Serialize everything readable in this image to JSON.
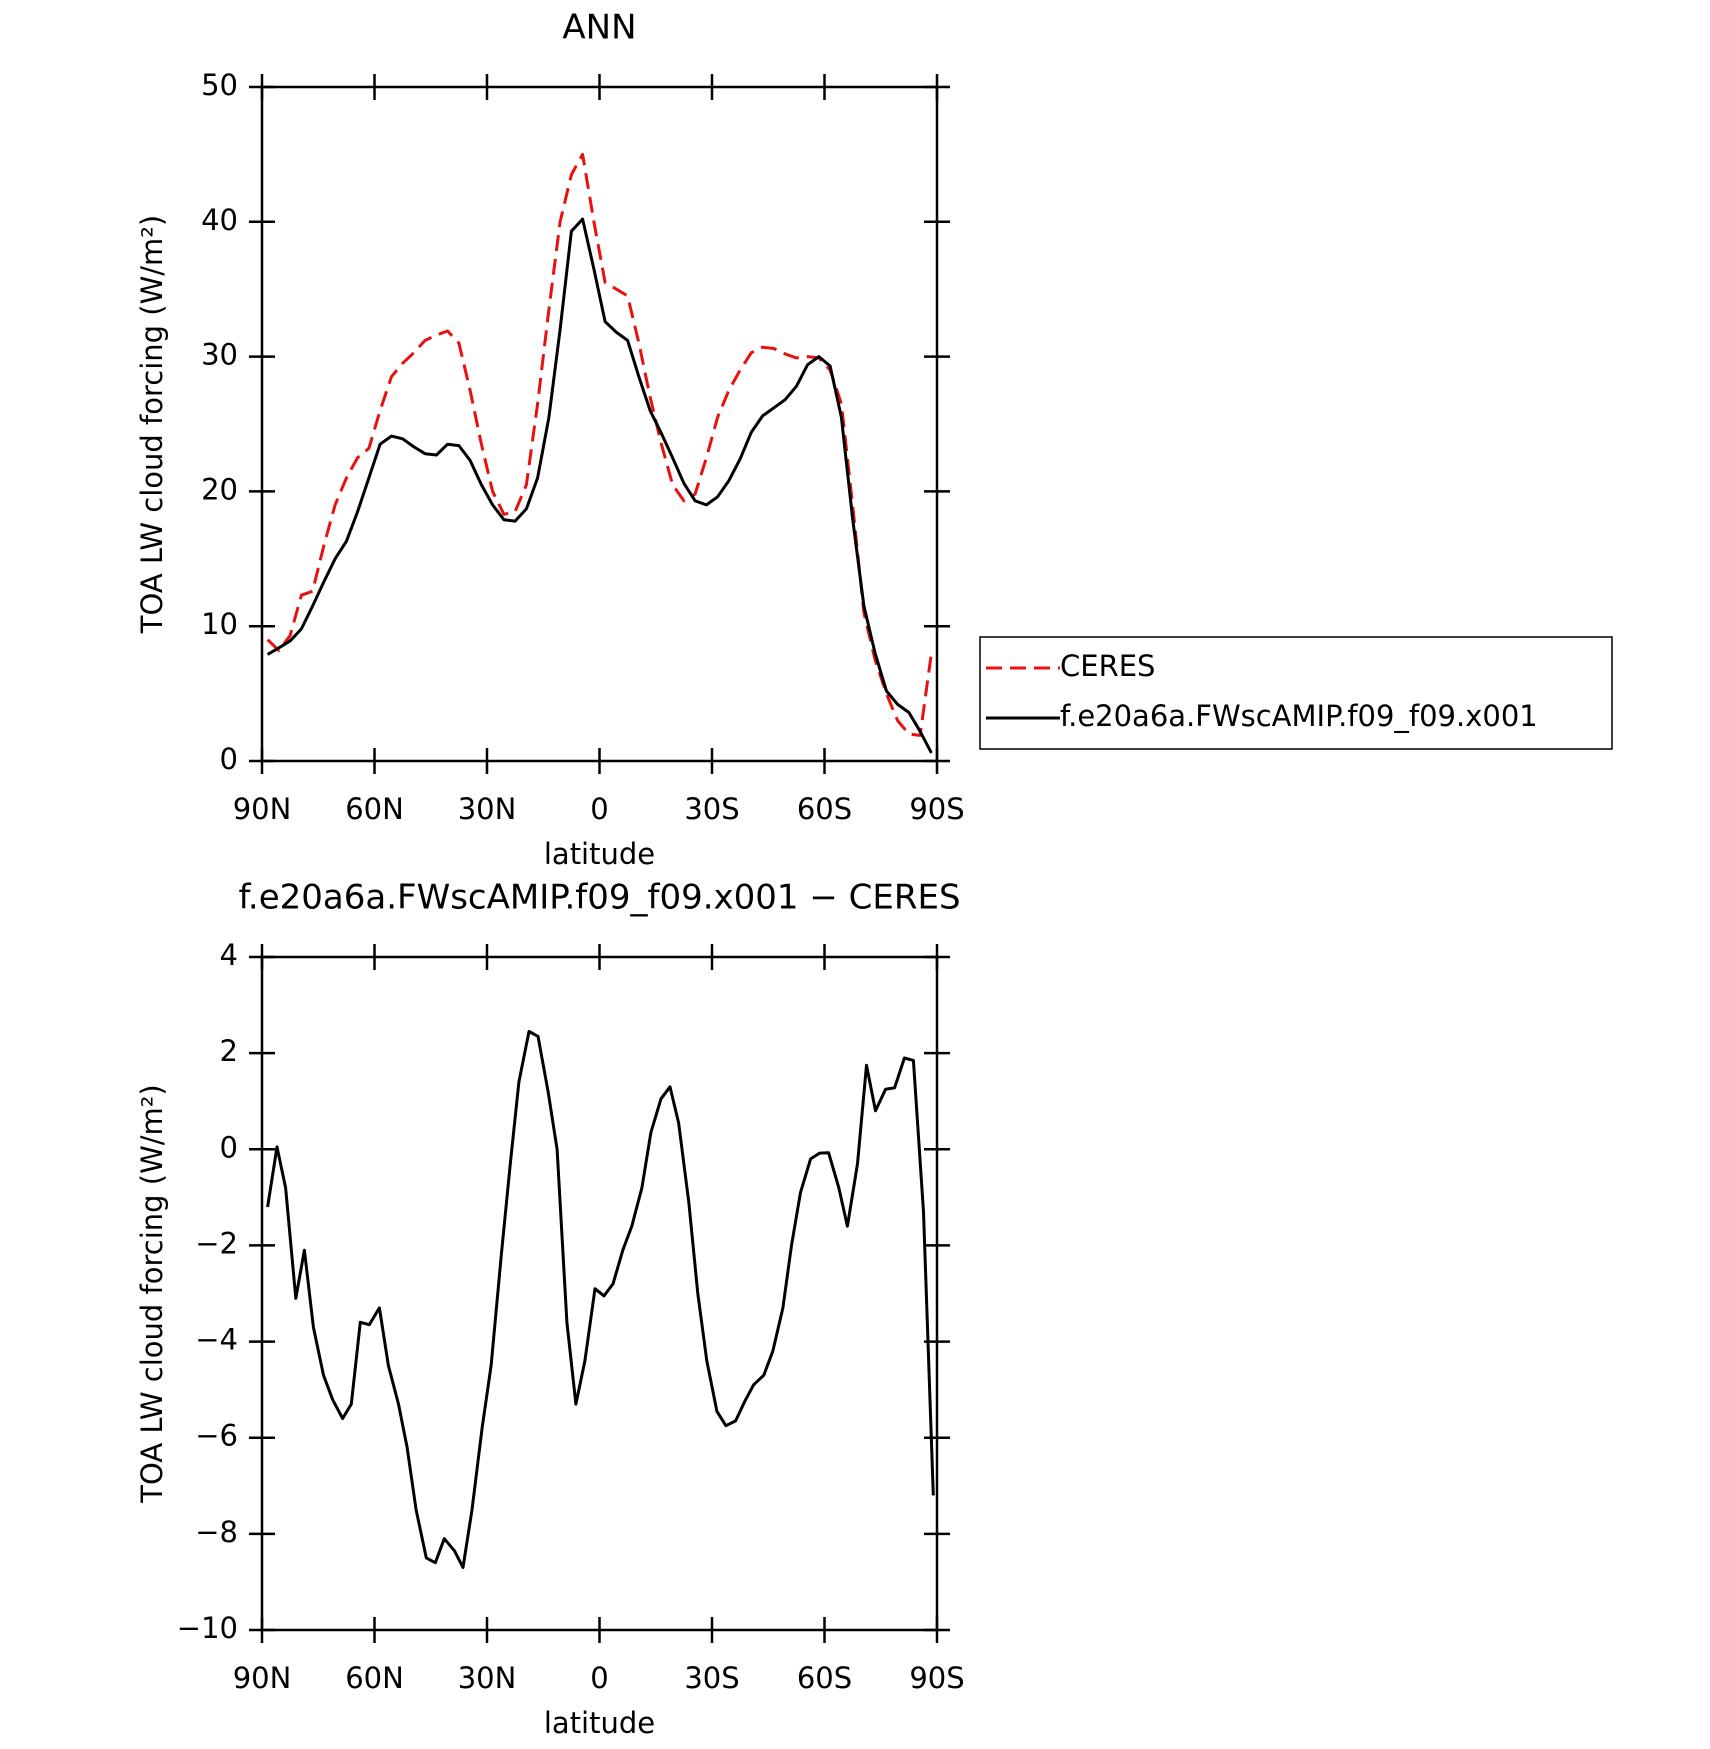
{
  "chart_data": [
    {
      "type": "line",
      "title": "ANN",
      "x_label": "latitude",
      "y_label": "TOA LW cloud forcing (W/m²)",
      "xlim": [
        90,
        -90
      ],
      "xticks": [
        {
          "value": 90,
          "label": "90N"
        },
        {
          "value": 60,
          "label": "60N"
        },
        {
          "value": 30,
          "label": "30N"
        },
        0,
        {
          "value": -30,
          "label": "30S"
        },
        {
          "value": -60,
          "label": "60S"
        },
        {
          "value": -90,
          "label": "90S"
        }
      ],
      "ylim": [
        0,
        50
      ],
      "yticks": [
        0,
        10,
        20,
        30,
        40,
        50
      ],
      "legend": "outside right",
      "x": [
        88.5,
        85.5,
        82.5,
        79.5,
        76.5,
        73.5,
        70.5,
        67.5,
        64.5,
        61.5,
        58.5,
        55.5,
        52.5,
        49.5,
        46.5,
        43.5,
        40.5,
        37.5,
        34.5,
        31.5,
        28.5,
        25.5,
        22.5,
        19.5,
        16.5,
        13.5,
        10.5,
        7.5,
        4.5,
        1.5,
        -1.5,
        -4.5,
        -7.5,
        -10.5,
        -13.5,
        -16.5,
        -19.5,
        -22.5,
        -25.5,
        -28.5,
        -31.5,
        -34.5,
        -37.5,
        -40.5,
        -43.5,
        -46.5,
        -49.5,
        -52.5,
        -55.5,
        -58.5,
        -61.5,
        -64.5,
        -67.5,
        -70.5,
        -73.5,
        -76.5,
        -79.5,
        -82.5,
        -85.5,
        -88.5
      ],
      "series": [
        {
          "name": "CERES",
          "color": "#e8110f",
          "dashed": true,
          "values": [
            9.0,
            8.2,
            9.3,
            12.3,
            12.6,
            16.0,
            19.0,
            21.0,
            22.5,
            23.2,
            26.0,
            28.5,
            29.5,
            30.3,
            31.2,
            31.6,
            31.9,
            31.0,
            27.5,
            23.5,
            20.0,
            18.3,
            18.5,
            20.5,
            26.5,
            33.5,
            40.0,
            43.5,
            45.0,
            40.0,
            35.5,
            35.0,
            34.5,
            31.0,
            27.0,
            23.5,
            20.5,
            19.3,
            19.8,
            22.5,
            25.5,
            27.5,
            29.0,
            30.3,
            30.7,
            30.6,
            30.2,
            29.9,
            30.0,
            29.9,
            29.0,
            26.5,
            19.0,
            11.0,
            7.5,
            5.0,
            3.0,
            2.0,
            1.9,
            8.0
          ]
        },
        {
          "name": "f.e20a6a.FWscAMIP.f09_f09.x001",
          "color": "#000000",
          "dashed": false,
          "values": [
            7.9,
            8.4,
            8.9,
            9.8,
            11.5,
            13.3,
            15.0,
            16.3,
            18.5,
            21.0,
            23.5,
            24.1,
            23.9,
            23.3,
            22.8,
            22.7,
            23.5,
            23.4,
            22.3,
            20.5,
            19.0,
            17.9,
            17.8,
            18.7,
            21.0,
            25.5,
            32.0,
            39.3,
            40.2,
            36.5,
            32.6,
            31.8,
            31.2,
            28.5,
            26.0,
            24.3,
            22.5,
            20.6,
            19.3,
            19.0,
            19.6,
            20.8,
            22.4,
            24.4,
            25.6,
            26.2,
            26.8,
            27.8,
            29.4,
            30.0,
            29.3,
            25.5,
            18.0,
            11.5,
            8.0,
            5.2,
            4.2,
            3.6,
            2.2,
            0.6
          ]
        }
      ]
    },
    {
      "type": "line",
      "title": "f.e20a6a.FWscAMIP.f09_f09.x001 − CERES",
      "x_label": "latitude",
      "y_label": "TOA LW cloud forcing (W/m²)",
      "xlim": [
        90,
        -90
      ],
      "xticks": [
        {
          "value": 90,
          "label": "90N"
        },
        {
          "value": 60,
          "label": "60N"
        },
        {
          "value": 30,
          "label": "30N"
        },
        0,
        {
          "value": -30,
          "label": "30S"
        },
        {
          "value": -60,
          "label": "60S"
        },
        {
          "value": -90,
          "label": "90S"
        }
      ],
      "ylim": [
        -10,
        4
      ],
      "yticks": [
        {
          "value": -10,
          "label": "−10"
        },
        {
          "value": -8,
          "label": "−8"
        },
        {
          "value": -6,
          "label": "−6"
        },
        {
          "value": -4,
          "label": "−4"
        },
        {
          "value": -2,
          "label": "−2"
        },
        0,
        2,
        4
      ],
      "x": [
        88.5,
        86.0,
        83.7,
        81.0,
        78.7,
        76.3,
        73.6,
        71.2,
        68.5,
        66.2,
        63.8,
        61.4,
        58.7,
        56.3,
        53.6,
        51.3,
        48.9,
        46.2,
        43.8,
        41.4,
        38.7,
        36.4,
        34.0,
        31.3,
        28.9,
        26.2,
        23.8,
        21.5,
        18.8,
        16.4,
        13.7,
        11.3,
        8.7,
        6.3,
        3.9,
        1.2,
        -1.2,
        -3.6,
        -6.2,
        -8.6,
        -11.3,
        -13.7,
        -16.4,
        -18.8,
        -21.1,
        -23.8,
        -26.2,
        -28.6,
        -31.3,
        -33.7,
        -36.3,
        -38.7,
        -41.1,
        -43.8,
        -46.2,
        -48.9,
        -51.2,
        -53.6,
        -56.3,
        -58.7,
        -61.1,
        -63.8,
        -66.1,
        -68.8,
        -71.2,
        -73.6,
        -76.3,
        -78.7,
        -81.3,
        -83.7,
        -86.4,
        -89.0
      ],
      "series": [
        {
          "color": "#000000",
          "dashed": false,
          "values": [
            -1.2,
            0.05,
            -0.8,
            -3.1,
            -2.1,
            -3.7,
            -4.7,
            -5.2,
            -5.6,
            -5.3,
            -3.6,
            -3.65,
            -3.3,
            -4.5,
            -5.3,
            -6.2,
            -7.5,
            -8.5,
            -8.6,
            -8.1,
            -8.35,
            -8.7,
            -7.5,
            -5.8,
            -4.5,
            -2.2,
            -0.3,
            1.4,
            2.45,
            2.35,
            1.2,
            0.0,
            -3.6,
            -5.3,
            -4.4,
            -2.9,
            -3.05,
            -2.8,
            -2.1,
            -1.6,
            -0.8,
            0.35,
            1.05,
            1.3,
            0.55,
            -1.1,
            -3.0,
            -4.4,
            -5.45,
            -5.75,
            -5.65,
            -5.25,
            -4.9,
            -4.7,
            -4.2,
            -3.3,
            -2.0,
            -0.9,
            -0.2,
            -0.08,
            -0.07,
            -0.8,
            -1.6,
            -0.3,
            1.75,
            0.8,
            1.25,
            1.28,
            1.9,
            1.85,
            -1.3,
            -7.2
          ]
        }
      ]
    }
  ]
}
